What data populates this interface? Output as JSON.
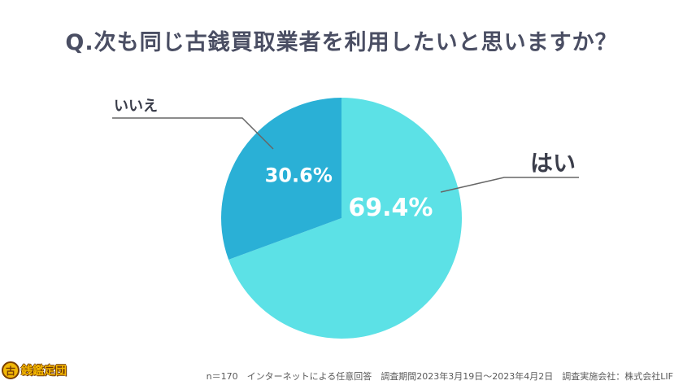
{
  "title": "Q.次も同じ古銭買取業者を利用したいと思いますか？",
  "footer": "n＝170　インターネットによる任意回答　調査期間2023年3月19日～2023年4月2日　調査実施会社：株式会社LIF",
  "logo": {
    "mark": "古",
    "text": "銭鑑定団"
  },
  "colors": {
    "yes": "#5ce1e6",
    "no": "#2ab0d6",
    "leader": "#666666",
    "title": "#4a4e63"
  },
  "chart_data": {
    "type": "pie",
    "title": "Q.次も同じ古銭買取業者を利用したいと思いますか？",
    "slices": [
      {
        "label": "はい",
        "value": 69.4,
        "display": "69.4%"
      },
      {
        "label": "いいえ",
        "value": 30.6,
        "display": "30.6%"
      }
    ],
    "start": "12 o'clock, clockwise"
  }
}
